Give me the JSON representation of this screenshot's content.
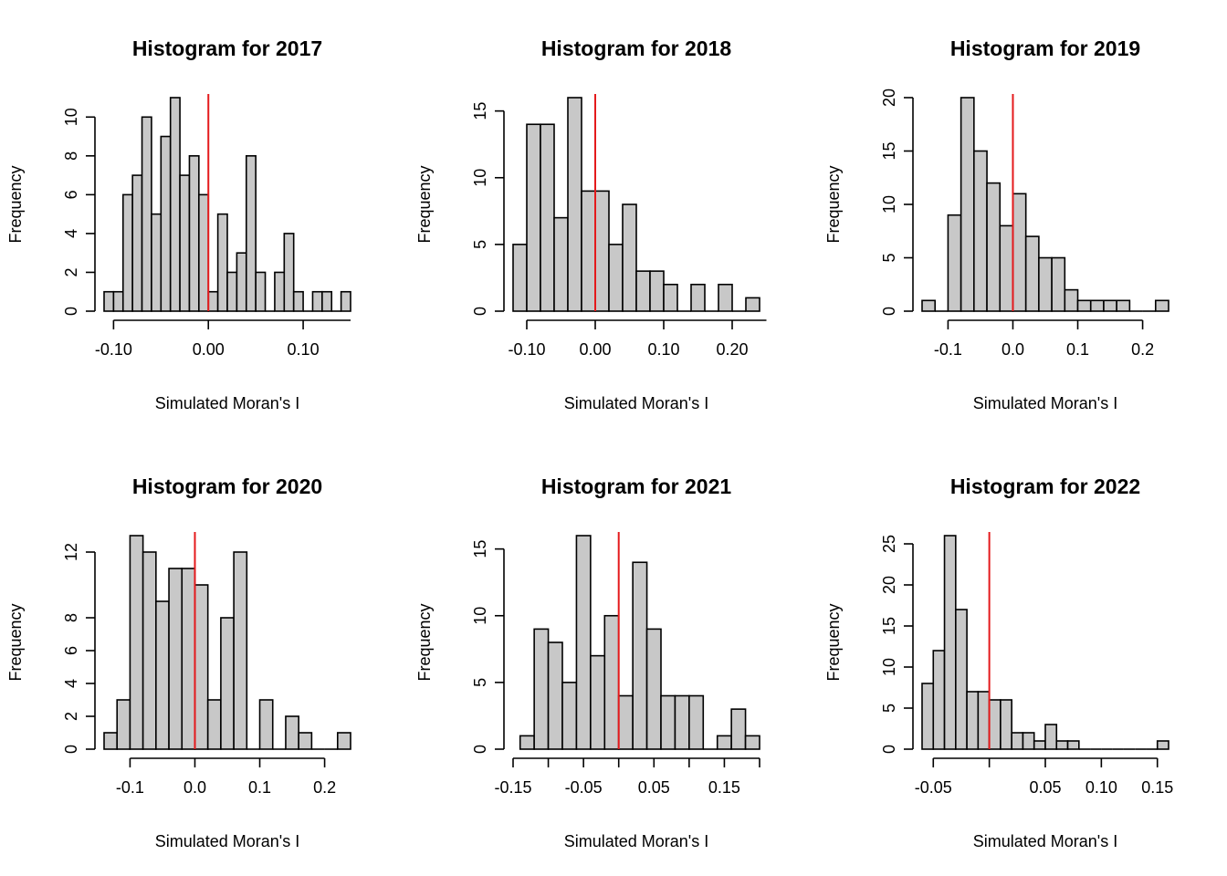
{
  "chart_data": [
    {
      "type": "bar",
      "title": "Histogram for 2017",
      "xlabel": "Simulated Moran's I",
      "ylabel": "Frequency",
      "xlim": [
        -0.11,
        0.15
      ],
      "ylim": [
        0,
        11
      ],
      "bin_width": 0.01,
      "bin_start": -0.11,
      "counts": [
        1,
        1,
        6,
        7,
        10,
        5,
        9,
        11,
        7,
        8,
        6,
        1,
        5,
        2,
        3,
        8,
        2,
        0,
        2,
        4,
        1,
        0,
        1,
        1,
        0,
        1
      ],
      "x_ticks": [
        -0.1,
        0.0,
        0.1
      ],
      "x_tick_labels": [
        "-0.10",
        "0.00",
        "0.10"
      ],
      "y_ticks": [
        0,
        2,
        4,
        6,
        8,
        10
      ],
      "y_tick_labels": [
        "0",
        "2",
        "4",
        "6",
        "8",
        "10"
      ],
      "x_axis_range": [
        -0.1,
        0.15
      ],
      "y_axis_range": [
        0,
        10
      ],
      "reference_line": 0.0,
      "reference_color": "#e41a1c",
      "bar_fill": "#c8c8c8"
    },
    {
      "type": "bar",
      "title": "Histogram for 2018",
      "xlabel": "Simulated Moran's I",
      "ylabel": "Frequency",
      "xlim": [
        -0.12,
        0.24
      ],
      "ylim": [
        0,
        16
      ],
      "bin_width": 0.02,
      "bin_start": -0.12,
      "counts": [
        5,
        14,
        14,
        7,
        16,
        9,
        9,
        5,
        8,
        3,
        3,
        2,
        0,
        2,
        0,
        2,
        0,
        1
      ],
      "x_ticks": [
        -0.1,
        0.0,
        0.1,
        0.2
      ],
      "x_tick_labels": [
        "-0.10",
        "0.00",
        "0.10",
        "0.20"
      ],
      "y_ticks": [
        0,
        5,
        10,
        15
      ],
      "y_tick_labels": [
        "0",
        "5",
        "10",
        "15"
      ],
      "x_axis_range": [
        -0.1,
        0.25
      ],
      "y_axis_range": [
        0,
        15
      ],
      "reference_line": 0.0,
      "reference_color": "#e41a1c",
      "bar_fill": "#c8c8c8"
    },
    {
      "type": "bar",
      "title": "Histogram for 2019",
      "xlabel": "Simulated Moran's I",
      "ylabel": "Frequency",
      "xlim": [
        -0.14,
        0.24
      ],
      "ylim": [
        0,
        20
      ],
      "bin_width": 0.02,
      "bin_start": -0.14,
      "counts": [
        1,
        0,
        9,
        20,
        15,
        12,
        8,
        11,
        7,
        5,
        5,
        2,
        1,
        1,
        1,
        1,
        0,
        0,
        1
      ],
      "x_ticks": [
        -0.1,
        0.0,
        0.1,
        0.2
      ],
      "x_tick_labels": [
        "-0.1",
        "0.0",
        "0.1",
        "0.2"
      ],
      "y_ticks": [
        0,
        5,
        10,
        15,
        20
      ],
      "y_tick_labels": [
        "0",
        "5",
        "10",
        "15",
        "20"
      ],
      "x_axis_range": [
        -0.1,
        0.2
      ],
      "y_axis_range": [
        0,
        20
      ],
      "reference_line": 0.0,
      "reference_color": "#e41a1c",
      "bar_fill": "#c8c8c8"
    },
    {
      "type": "bar",
      "title": "Histogram for 2020",
      "xlabel": "Simulated Moran's I",
      "ylabel": "Frequency",
      "xlim": [
        -0.14,
        0.24
      ],
      "ylim": [
        0,
        13
      ],
      "bin_width": 0.02,
      "bin_start": -0.14,
      "counts": [
        1,
        3,
        13,
        12,
        9,
        11,
        11,
        10,
        3,
        8,
        12,
        0,
        3,
        0,
        2,
        1,
        0,
        0,
        1
      ],
      "x_ticks": [
        -0.1,
        0.0,
        0.1,
        0.2
      ],
      "x_tick_labels": [
        "-0.1",
        "0.0",
        "0.1",
        "0.2"
      ],
      "y_ticks": [
        0,
        2,
        4,
        6,
        8,
        12
      ],
      "y_tick_labels": [
        "0",
        "2",
        "4",
        "6",
        "8",
        "12"
      ],
      "x_axis_range": [
        -0.1,
        0.2
      ],
      "y_axis_range": [
        0,
        12
      ],
      "reference_line": 0.0,
      "reference_color": "#e41a1c",
      "bar_fill": "#c8c8c8"
    },
    {
      "type": "bar",
      "title": "Histogram for 2021",
      "xlabel": "Simulated Moran's I",
      "ylabel": "Frequency",
      "xlim": [
        -0.15,
        0.2
      ],
      "ylim": [
        0,
        16
      ],
      "bin_width": 0.02,
      "bin_start": -0.14,
      "counts": [
        1,
        9,
        8,
        5,
        16,
        7,
        10,
        4,
        14,
        9,
        4,
        4,
        4,
        0,
        1,
        3,
        1
      ],
      "x_ticks": [
        -0.15,
        -0.1,
        -0.05,
        0.0,
        0.05,
        0.1,
        0.15,
        0.2
      ],
      "x_tick_labels": [
        "-0.15",
        "",
        "-0.05",
        "",
        "0.05",
        "",
        "0.15",
        ""
      ],
      "y_ticks": [
        0,
        5,
        10,
        15
      ],
      "y_tick_labels": [
        "0",
        "5",
        "10",
        "15"
      ],
      "x_axis_range": [
        -0.15,
        0.2
      ],
      "y_axis_range": [
        0,
        15
      ],
      "reference_line": 0.0,
      "reference_color": "#e41a1c",
      "bar_fill": "#c8c8c8"
    },
    {
      "type": "bar",
      "title": "Histogram for 2022",
      "xlabel": "Simulated Moran's I",
      "ylabel": "Frequency",
      "xlim": [
        -0.06,
        0.16
      ],
      "ylim": [
        0,
        26
      ],
      "bin_width": 0.01,
      "bin_start": -0.06,
      "counts": [
        8,
        12,
        26,
        17,
        7,
        7,
        6,
        6,
        2,
        2,
        1,
        3,
        1,
        1,
        0,
        0,
        0,
        0,
        0,
        0,
        0,
        1
      ],
      "x_ticks": [
        -0.05,
        0.0,
        0.05,
        0.1,
        0.15
      ],
      "x_tick_labels": [
        "-0.05",
        "",
        "0.05",
        "0.10",
        "0.15"
      ],
      "y_ticks": [
        0,
        5,
        10,
        15,
        20,
        25
      ],
      "y_tick_labels": [
        "0",
        "5",
        "10",
        "15",
        "20",
        "25"
      ],
      "x_axis_range": [
        -0.05,
        0.15
      ],
      "y_axis_range": [
        0,
        25
      ],
      "reference_line": 0.0,
      "reference_color": "#e41a1c",
      "bar_fill": "#c8c8c8"
    }
  ]
}
